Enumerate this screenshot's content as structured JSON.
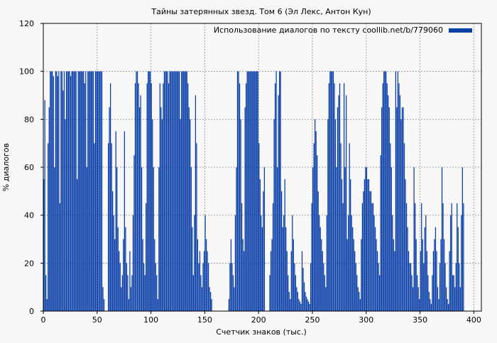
{
  "chart_data": {
    "type": "bar",
    "title": "Тайны затерянных звезд. Том 6 (Эл Лекс, Антон Кун)",
    "xlabel": "Счетчик знаков (тыс.)",
    "ylabel": "% диалогов",
    "legend": {
      "label": "Использование диалогов по тексту coollib.net/b/779060",
      "position": "top-right"
    },
    "xlim": [
      0,
      407
    ],
    "ylim": [
      0,
      120
    ],
    "xticks": [
      "0",
      "50",
      "100",
      "150",
      "200",
      "250",
      "300",
      "350",
      "400"
    ],
    "xtick_values": [
      0,
      50,
      100,
      150,
      200,
      250,
      300,
      350,
      400
    ],
    "yticks": [
      "0",
      "20",
      "40",
      "60",
      "80",
      "100",
      "120"
    ],
    "ytick_values": [
      0,
      20,
      40,
      60,
      80,
      100,
      120
    ],
    "grid": true,
    "colors": {
      "bar": "#0b3fa8",
      "background": "#f8f8f8",
      "grid": "#a0a0a0"
    },
    "x_start": 0,
    "x_step": 1,
    "values": [
      55,
      88,
      15,
      5,
      70,
      85,
      100,
      100,
      100,
      98,
      60,
      100,
      100,
      98,
      100,
      45,
      100,
      100,
      92,
      100,
      80,
      100,
      100,
      100,
      100,
      98,
      100,
      100,
      100,
      100,
      100,
      55,
      100,
      100,
      100,
      100,
      100,
      100,
      95,
      100,
      60,
      100,
      100,
      100,
      100,
      100,
      100,
      70,
      100,
      100,
      100,
      100,
      100,
      100,
      100,
      10,
      5,
      0,
      0,
      0,
      70,
      85,
      95,
      70,
      50,
      40,
      30,
      75,
      60,
      35,
      25,
      20,
      10,
      15,
      30,
      75,
      35,
      20,
      15,
      5,
      25,
      10,
      15,
      40,
      65,
      95,
      100,
      100,
      95,
      85,
      90,
      60,
      30,
      20,
      15,
      45,
      95,
      100,
      100,
      100,
      95,
      80,
      60,
      30,
      20,
      15,
      5,
      60,
      95,
      85,
      80,
      95,
      100,
      100,
      100,
      100,
      95,
      100,
      100,
      100,
      100,
      100,
      100,
      100,
      100,
      100,
      100,
      80,
      100,
      100,
      100,
      100,
      100,
      100,
      95,
      85,
      80,
      60,
      35,
      15,
      40,
      90,
      70,
      30,
      20,
      25,
      15,
      10,
      20,
      25,
      40,
      30,
      25,
      20,
      10,
      8,
      5,
      0,
      0,
      0,
      0,
      0,
      0,
      0,
      0,
      0,
      0,
      0,
      0,
      0,
      0,
      0,
      5,
      20,
      30,
      20,
      15,
      10,
      40,
      60,
      100,
      100,
      95,
      80,
      45,
      30,
      25,
      85,
      95,
      100,
      100,
      100,
      100,
      100,
      100,
      100,
      100,
      100,
      100,
      100,
      70,
      55,
      40,
      35,
      50,
      60,
      0,
      0,
      0,
      0,
      15,
      25,
      30,
      45,
      80,
      95,
      100,
      60,
      90,
      100,
      100,
      50,
      35,
      40,
      55,
      35,
      25,
      15,
      8,
      5,
      25,
      40,
      30,
      20,
      15,
      10,
      8,
      5,
      4,
      3,
      25,
      18,
      12,
      8,
      6,
      5,
      4,
      3,
      20,
      45,
      60,
      70,
      80,
      75,
      65,
      50,
      40,
      35,
      30,
      25,
      20,
      15,
      10,
      40,
      80,
      95,
      100,
      100,
      100,
      100,
      95,
      80,
      60,
      85,
      90,
      95,
      70,
      55,
      45,
      95,
      60,
      90,
      30,
      40,
      70,
      55,
      40,
      35,
      30,
      25,
      20,
      15,
      10,
      8,
      5,
      30,
      45,
      50,
      55,
      60,
      60,
      55,
      55,
      50,
      50,
      45,
      45,
      40,
      35,
      30,
      25,
      20,
      15,
      65,
      85,
      95,
      100,
      100,
      100,
      95,
      90,
      85,
      70,
      60,
      40,
      30,
      25,
      100,
      85,
      100,
      95,
      90,
      80,
      85,
      85,
      70,
      55,
      45,
      35,
      25,
      20,
      20,
      15,
      10,
      60,
      45,
      30,
      15,
      10,
      5,
      25,
      45,
      30,
      20,
      35,
      40,
      25,
      15,
      8,
      5,
      3,
      15,
      25,
      30,
      35,
      25,
      10,
      5,
      20,
      30,
      60,
      45,
      30,
      20,
      10,
      5,
      3,
      25,
      40,
      45,
      15,
      15,
      10,
      20,
      45,
      35,
      20,
      10,
      40,
      60,
      45
    ]
  }
}
